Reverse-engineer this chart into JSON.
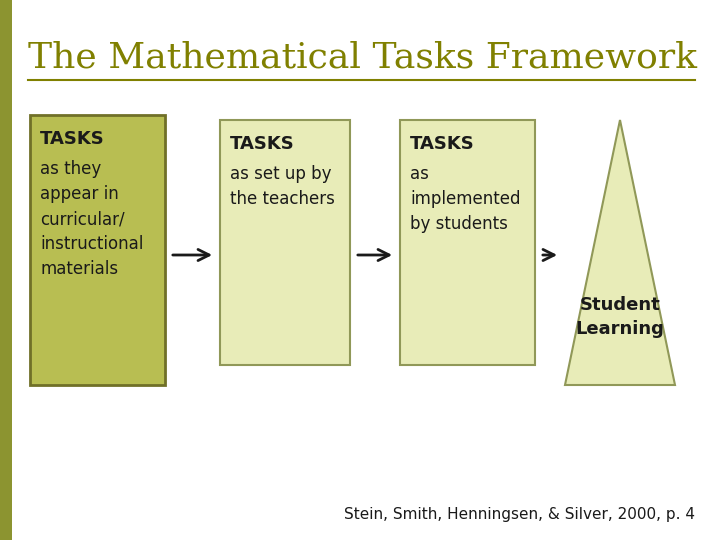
{
  "title": "The Mathematical Tasks Framework",
  "title_color": "#808000",
  "title_fontsize": 26,
  "background_color": "#ffffff",
  "box1_fill": "#b8be52",
  "box1_edge": "#707028",
  "box23_fill": "#e8ecb8",
  "box23_edge": "#909858",
  "tri_fill": "#e8ecb8",
  "tri_edge": "#909858",
  "box1_label_bold": "TASKS",
  "box1_label_normal": "as they\nappear in\ncurricular/\ninstructional\nmaterials",
  "box2_label_bold": "TASKS",
  "box2_label_normal": "as set up by\nthe teachers",
  "box3_label_bold": "TASKS",
  "box3_label_normal": "as\nimplemented\nby students",
  "triangle_label": "Student\nLearning",
  "citation": "Stein, Smith, Henningsen, & Silver, 2000, p. 4",
  "citation_fontsize": 11,
  "label_fontsize": 12,
  "bold_fontsize": 13,
  "triangle_label_fontsize": 13,
  "arrow_color": "#1a1a1a",
  "text_color": "#1a1a1a",
  "left_bar_color": "#8c9430",
  "line_color": "#808000"
}
